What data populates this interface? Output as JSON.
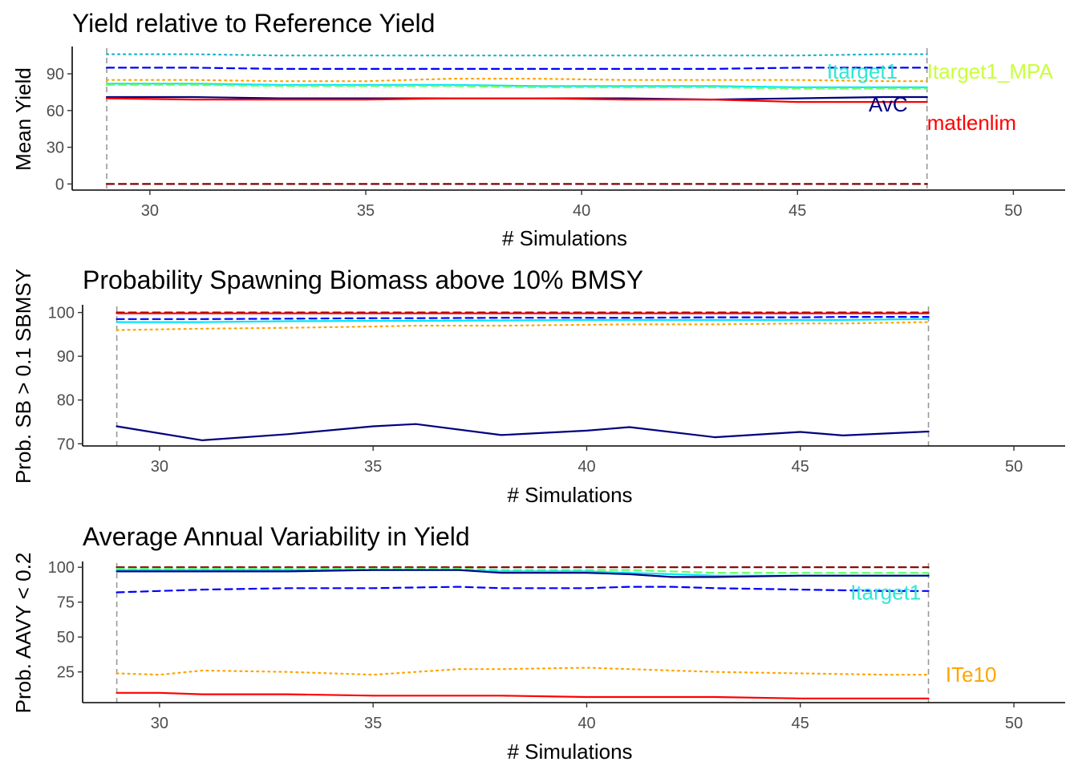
{
  "chart_data": [
    {
      "type": "line",
      "title": "Yield relative to Reference Yield",
      "xlabel": "# Simulations",
      "ylabel": "Mean Yield",
      "xlim": [
        28.2,
        51.2
      ],
      "ylim": [
        -5,
        111
      ],
      "x_ticks": [
        30,
        35,
        40,
        45,
        50
      ],
      "y_ticks": [
        0,
        30,
        60,
        90
      ],
      "vlines": [
        29,
        48
      ],
      "grid": false,
      "x": [
        29,
        31,
        33,
        35,
        37,
        39,
        41,
        43,
        45,
        47,
        48
      ],
      "series": [
        {
          "color": "#1fb4c8",
          "style": "dotted",
          "values": [
            106,
            106,
            105,
            105,
            105,
            105,
            105,
            105,
            105,
            106,
            106
          ]
        },
        {
          "color": "#0000ff",
          "style": "dashed",
          "values": [
            95,
            95,
            94,
            94,
            94,
            94,
            94,
            94,
            95,
            95,
            95
          ]
        },
        {
          "color": "#ffa500",
          "style": "dotted",
          "values": [
            85,
            85,
            84,
            84,
            86,
            86,
            85,
            85,
            85,
            84,
            84
          ]
        },
        {
          "color": "#00e5ff",
          "style": "solid",
          "values": [
            82,
            82,
            81,
            81,
            81,
            80,
            80,
            80,
            79,
            79,
            79
          ]
        },
        {
          "color": "#66ff66",
          "style": "dashed",
          "values": [
            81,
            81,
            80,
            80,
            80,
            79,
            79,
            79,
            78,
            78,
            78
          ]
        },
        {
          "color": "#00007f",
          "style": "solid",
          "values": [
            71,
            71,
            70,
            70,
            70,
            70,
            70,
            69,
            70,
            71,
            71
          ]
        },
        {
          "color": "#ff0000",
          "style": "solid",
          "values": [
            70,
            69,
            69,
            69,
            70,
            70,
            69,
            69,
            67,
            67,
            67
          ]
        },
        {
          "color": "#7f0000",
          "style": "dashed",
          "values": [
            0,
            0,
            0,
            0,
            0,
            0,
            0,
            0,
            0,
            0,
            0
          ]
        }
      ],
      "labels": [
        {
          "text": "Itarget1",
          "color": "#2ee8d6",
          "x": 46.5,
          "y": 92,
          "anchor": "middle"
        },
        {
          "text": "Itarget1_MPA",
          "color": "#c8ff3c",
          "x": 48,
          "y": 92,
          "anchor": "start"
        },
        {
          "text": "AvC",
          "color": "#00007f",
          "x": 47.1,
          "y": 65,
          "anchor": "middle"
        },
        {
          "text": "matlenlim",
          "color": "#ff0000",
          "x": 48,
          "y": 50,
          "anchor": "start"
        }
      ]
    },
    {
      "type": "line",
      "title": "Probability Spawning Biomass above 10% BMSY",
      "xlabel": "# Simulations",
      "ylabel": "Prob. SB > 0.1 SBMSY",
      "xlim": [
        28.2,
        51.2
      ],
      "ylim": [
        69.5,
        101.4
      ],
      "x_ticks": [
        30,
        35,
        40,
        45,
        50
      ],
      "y_ticks": [
        70,
        80,
        90,
        100
      ],
      "vlines": [
        29,
        48
      ],
      "grid": false,
      "x": [
        29,
        31,
        33,
        35,
        36,
        38,
        40,
        41,
        43,
        45,
        46,
        48
      ],
      "series": [
        {
          "color": "#7f0000",
          "style": "dashed",
          "values": [
            100,
            100,
            100,
            100,
            100,
            100,
            100,
            100,
            100,
            100,
            100,
            100
          ]
        },
        {
          "color": "#ff0000",
          "style": "solid",
          "values": [
            99.8,
            99.8,
            99.8,
            99.8,
            99.8,
            99.8,
            99.8,
            99.8,
            99.8,
            99.8,
            99.8,
            99.8
          ]
        },
        {
          "color": "#0000ff",
          "style": "dashed",
          "values": [
            98.5,
            98.5,
            98.6,
            98.7,
            98.7,
            98.8,
            98.8,
            98.8,
            98.9,
            98.9,
            99,
            99
          ]
        },
        {
          "color": "#00e5ff",
          "style": "solid",
          "values": [
            97.8,
            97.8,
            98,
            98.1,
            98.1,
            98.2,
            98.3,
            98.3,
            98.3,
            98.3,
            98.3,
            98.5
          ]
        },
        {
          "color": "#ffa500",
          "style": "dotted",
          "values": [
            96,
            96.3,
            96.5,
            96.8,
            97,
            97,
            97.2,
            97.3,
            97.3,
            97.5,
            97.5,
            97.8
          ]
        },
        {
          "color": "#00007f",
          "style": "solid",
          "values": [
            74,
            70.8,
            72.2,
            74,
            74.5,
            72,
            73,
            73.8,
            71.5,
            72.7,
            71.9,
            72.8
          ]
        }
      ],
      "labels": []
    },
    {
      "type": "line",
      "title": "Average Annual Variability in Yield",
      "xlabel": "# Simulations",
      "ylabel": "Prob. AAVY < 0.2",
      "xlim": [
        28.2,
        51.2
      ],
      "ylim": [
        3,
        103
      ],
      "x_ticks": [
        30,
        35,
        40,
        45,
        50
      ],
      "y_ticks": [
        25,
        50,
        75,
        100
      ],
      "vlines": [
        29,
        48
      ],
      "grid": false,
      "x": [
        29,
        30,
        31,
        33,
        35,
        37,
        38,
        40,
        41,
        42,
        43,
        45,
        47,
        48
      ],
      "series": [
        {
          "color": "#7f0000",
          "style": "dashed",
          "values": [
            100,
            100,
            100,
            100,
            100,
            100,
            100,
            100,
            100,
            100,
            100,
            100,
            100,
            100
          ]
        },
        {
          "color": "#66ff66",
          "style": "dashed",
          "values": [
            99,
            99,
            99,
            99,
            99,
            99,
            98,
            98,
            98,
            97,
            96,
            96,
            96,
            96
          ]
        },
        {
          "color": "#00e5ff",
          "style": "solid",
          "values": [
            98,
            98,
            98,
            98,
            98,
            98,
            97,
            97,
            96,
            95,
            94,
            94,
            94,
            94
          ]
        },
        {
          "color": "#00007f",
          "style": "solid",
          "values": [
            97,
            97,
            97,
            97,
            98,
            98,
            96,
            96,
            95,
            93,
            93,
            94,
            94,
            94
          ]
        },
        {
          "color": "#0000ff",
          "style": "dashed",
          "values": [
            82,
            83,
            84,
            85,
            85,
            86,
            85,
            85,
            86,
            86,
            85,
            84,
            83,
            83
          ]
        },
        {
          "color": "#ffa500",
          "style": "dotted",
          "values": [
            24,
            23,
            26,
            25,
            23,
            27,
            27,
            28,
            27,
            26,
            25,
            24,
            23,
            23
          ]
        },
        {
          "color": "#ff0000",
          "style": "solid",
          "values": [
            10,
            10,
            9,
            9,
            8,
            8,
            8,
            7,
            7,
            7,
            7,
            6,
            6,
            6
          ]
        }
      ],
      "labels": [
        {
          "text": "Itarget1",
          "color": "#2ee8d6",
          "x": 47,
          "y": 82,
          "anchor": "middle"
        },
        {
          "text": "ITe10",
          "color": "#ffa500",
          "x": 48.4,
          "y": 23,
          "anchor": "start"
        }
      ]
    }
  ]
}
